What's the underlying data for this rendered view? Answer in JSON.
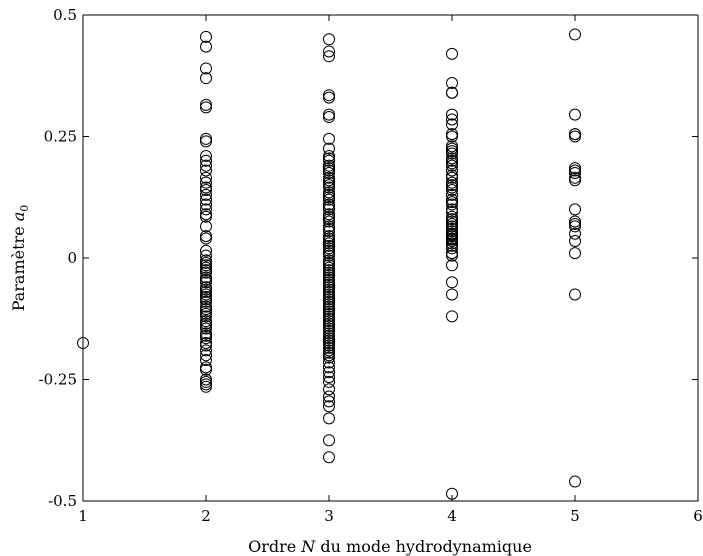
{
  "chart_data": {
    "type": "scatter",
    "xlabel_prefix": "Ordre",
    "xlabel_var": "N",
    "xlabel_suffix": "du mode hydrodynamique",
    "ylabel_prefix": "Paramètre",
    "ylabel_var": "a",
    "ylabel_sub": "0",
    "xlim": [
      1,
      6
    ],
    "ylim": [
      -0.5,
      0.5
    ],
    "x_ticks": [
      1,
      2,
      3,
      4,
      5,
      6
    ],
    "x_tick_labels": [
      "1",
      "2",
      "3",
      "4",
      "5",
      "6"
    ],
    "y_ticks": [
      -0.5,
      -0.25,
      0,
      0.25,
      0.5
    ],
    "y_tick_labels": [
      "-0.5",
      "-0.25",
      "0",
      "0.25",
      "0.5"
    ],
    "grid": false,
    "marker": "open-circle",
    "series": [
      {
        "x": [
          1
        ],
        "y": [
          -0.175
        ]
      },
      {
        "x": [
          2,
          2,
          2,
          2,
          2,
          2,
          2,
          2,
          2,
          2,
          2,
          2,
          2,
          2,
          2,
          2,
          2,
          2,
          2,
          2,
          2,
          2,
          2,
          2,
          2,
          2,
          2,
          2,
          2,
          2,
          2,
          2,
          2,
          2,
          2,
          2,
          2,
          2,
          2,
          2,
          2,
          2,
          2,
          2,
          2,
          2,
          2,
          2,
          2,
          2,
          2,
          2,
          2,
          2,
          2,
          2,
          2,
          2,
          2,
          2,
          2,
          2,
          2,
          2,
          2,
          2
        ],
        "y": [
          0.455,
          0.435,
          0.39,
          0.37,
          0.315,
          0.31,
          0.245,
          0.24,
          0.21,
          0.2,
          0.19,
          0.18,
          0.165,
          0.155,
          0.145,
          0.14,
          0.13,
          0.12,
          0.11,
          0.1,
          0.09,
          0.085,
          0.065,
          0.045,
          0.04,
          -0.005,
          -0.01,
          -0.015,
          -0.02,
          -0.03,
          -0.04,
          -0.045,
          -0.05,
          -0.06,
          -0.065,
          -0.07,
          -0.075,
          -0.08,
          -0.085,
          -0.09,
          -0.1,
          -0.105,
          -0.11,
          -0.115,
          -0.12,
          -0.13,
          -0.135,
          -0.14,
          -0.145,
          -0.155,
          -0.16,
          -0.165,
          -0.175,
          -0.18,
          -0.19,
          -0.2,
          -0.21,
          -0.225,
          -0.23,
          -0.25,
          -0.255,
          -0.26,
          -0.265,
          0.005,
          0.015,
          -0.025
        ]
      },
      {
        "x": [
          3,
          3,
          3,
          3,
          3,
          3,
          3,
          3,
          3,
          3,
          3,
          3,
          3,
          3,
          3,
          3,
          3,
          3,
          3,
          3,
          3,
          3,
          3,
          3,
          3,
          3,
          3,
          3,
          3,
          3,
          3,
          3,
          3,
          3,
          3,
          3,
          3,
          3,
          3,
          3,
          3,
          3,
          3,
          3,
          3,
          3,
          3,
          3,
          3,
          3,
          3,
          3,
          3,
          3,
          3,
          3,
          3,
          3,
          3,
          3,
          3,
          3,
          3,
          3,
          3,
          3,
          3,
          3,
          3,
          3,
          3,
          3,
          3,
          3,
          3,
          3,
          3,
          3,
          3,
          3,
          3,
          3,
          3,
          3,
          3,
          3,
          3,
          3,
          3,
          3,
          3,
          3,
          3,
          3,
          3,
          3,
          3
        ],
        "y": [
          0.45,
          0.425,
          0.415,
          0.335,
          0.33,
          0.295,
          0.29,
          0.245,
          0.225,
          0.21,
          0.2,
          0.19,
          0.185,
          0.175,
          0.165,
          0.16,
          0.15,
          0.145,
          0.135,
          0.13,
          0.12,
          0.11,
          0.1,
          0.09,
          0.08,
          0.075,
          0.065,
          0.055,
          0.045,
          0.04,
          0.03,
          0.02,
          0.015,
          0.005,
          -0.005,
          -0.01,
          -0.02,
          -0.03,
          -0.04,
          -0.05,
          -0.06,
          -0.07,
          -0.08,
          -0.09,
          -0.1,
          -0.11,
          -0.12,
          -0.13,
          -0.14,
          -0.15,
          -0.16,
          -0.17,
          -0.18,
          -0.19,
          -0.2,
          -0.215,
          -0.225,
          -0.235,
          -0.245,
          -0.255,
          -0.27,
          -0.285,
          -0.295,
          -0.305,
          -0.33,
          -0.375,
          -0.41,
          0.205,
          0.18,
          0.155,
          0.125,
          0.105,
          0.085,
          0.06,
          0.035,
          0.025,
          0.01,
          -0.015,
          -0.025,
          -0.035,
          -0.045,
          -0.055,
          -0.065,
          -0.075,
          -0.085,
          -0.095,
          -0.105,
          -0.115,
          -0.125,
          -0.135,
          -0.145,
          -0.155,
          -0.165,
          -0.175,
          -0.185,
          -0.195,
          -0.205
        ]
      },
      {
        "x": [
          4,
          4,
          4,
          4,
          4,
          4,
          4,
          4,
          4,
          4,
          4,
          4,
          4,
          4,
          4,
          4,
          4,
          4,
          4,
          4,
          4,
          4,
          4,
          4,
          4,
          4,
          4,
          4,
          4,
          4,
          4,
          4,
          4,
          4,
          4,
          4,
          4,
          4,
          4,
          4,
          4,
          4,
          4,
          4,
          4,
          4,
          4,
          4,
          4,
          4,
          4,
          4,
          4
        ],
        "y": [
          0.42,
          0.36,
          0.34,
          0.34,
          0.295,
          0.285,
          0.275,
          0.255,
          0.25,
          0.23,
          0.22,
          0.215,
          0.205,
          0.2,
          0.19,
          0.18,
          0.17,
          0.165,
          0.155,
          0.145,
          0.14,
          0.13,
          0.12,
          0.11,
          0.1,
          0.095,
          0.085,
          0.08,
          0.07,
          0.065,
          0.06,
          0.055,
          0.05,
          0.045,
          0.04,
          0.035,
          0.03,
          0.02,
          0.01,
          0.005,
          -0.015,
          -0.05,
          -0.075,
          -0.12,
          -0.485,
          0.225,
          0.195,
          0.15,
          0.115,
          0.075,
          0.048,
          0.038,
          0.025
        ]
      },
      {
        "x": [
          5,
          5,
          5,
          5,
          5,
          5,
          5,
          5,
          5,
          5,
          5,
          5,
          5,
          5,
          5,
          5,
          5,
          5,
          5
        ],
        "y": [
          0.46,
          0.295,
          0.255,
          0.25,
          0.185,
          0.18,
          0.175,
          0.165,
          0.16,
          0.1,
          0.07,
          0.065,
          0.05,
          0.035,
          0.01,
          -0.075,
          -0.46,
          0.255,
          0.075
        ]
      }
    ]
  }
}
